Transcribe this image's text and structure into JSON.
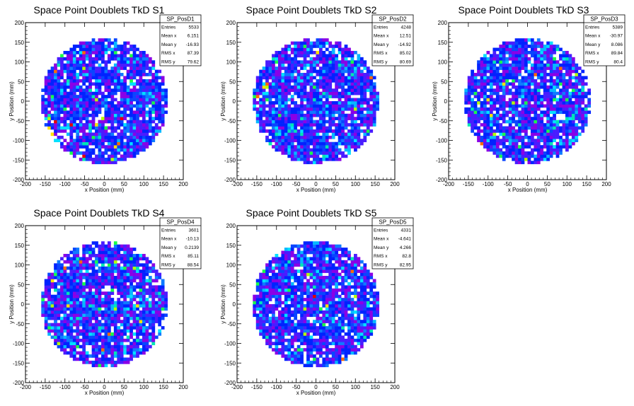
{
  "chart_data": [
    {
      "type": "heatmap",
      "title": "Space Point Doublets TkD S1",
      "xlabel": "x Position (mm)",
      "ylabel": "y Position (mm)",
      "xlim": [
        -200,
        200
      ],
      "ylim": [
        -200,
        200
      ],
      "xticks": [
        -200,
        -150,
        -100,
        -50,
        0,
        50,
        100,
        150,
        200
      ],
      "yticks": [
        -200,
        -150,
        -100,
        -50,
        0,
        50,
        100,
        150,
        200
      ],
      "stats": {
        "name": "SP_PosD1",
        "rows": [
          {
            "label": "Entries",
            "value": "5533"
          },
          {
            "label": "Mean x",
            "value": "6.151"
          },
          {
            "label": "Mean y",
            "value": "-16.93"
          },
          {
            "label": "RMS x",
            "value": "87.39"
          },
          {
            "label": "RMS y",
            "value": "79.62"
          }
        ]
      }
    },
    {
      "type": "heatmap",
      "title": "Space Point Doublets TkD S2",
      "xlabel": "x Position (mm)",
      "ylabel": "y Position (mm)",
      "xlim": [
        -200,
        200
      ],
      "ylim": [
        -200,
        200
      ],
      "xticks": [
        -200,
        -150,
        -100,
        -50,
        0,
        50,
        100,
        150,
        200
      ],
      "yticks": [
        -200,
        -150,
        -100,
        -50,
        0,
        50,
        100,
        150,
        200
      ],
      "stats": {
        "name": "SP_PosD2",
        "rows": [
          {
            "label": "Entries",
            "value": "4248"
          },
          {
            "label": "Mean x",
            "value": "12.51"
          },
          {
            "label": "Mean y",
            "value": "-14.92"
          },
          {
            "label": "RMS x",
            "value": "85.02"
          },
          {
            "label": "RMS y",
            "value": "80.69"
          }
        ]
      }
    },
    {
      "type": "heatmap",
      "title": "Space Point Doublets TkD S3",
      "xlabel": "x Position (mm)",
      "ylabel": "y Position (mm)",
      "xlim": [
        -200,
        200
      ],
      "ylim": [
        -200,
        200
      ],
      "xticks": [
        -200,
        -150,
        -100,
        -50,
        0,
        50,
        100,
        150,
        200
      ],
      "yticks": [
        -200,
        -150,
        -100,
        -50,
        0,
        50,
        100,
        150,
        200
      ],
      "stats": {
        "name": "SP_PosD3",
        "rows": [
          {
            "label": "Entries",
            "value": "5389"
          },
          {
            "label": "Mean x",
            "value": "-30.97"
          },
          {
            "label": "Mean y",
            "value": "8.086"
          },
          {
            "label": "RMS x",
            "value": "89.84"
          },
          {
            "label": "RMS y",
            "value": "80.4"
          }
        ]
      }
    },
    {
      "type": "heatmap",
      "title": "Space Point Doublets TkD S4",
      "xlabel": "x Position (mm)",
      "ylabel": "y Position (mm)",
      "xlim": [
        -200,
        200
      ],
      "ylim": [
        -200,
        200
      ],
      "xticks": [
        -200,
        -150,
        -100,
        -50,
        0,
        50,
        100,
        150,
        200
      ],
      "yticks": [
        -200,
        -150,
        -100,
        -50,
        0,
        50,
        100,
        150,
        200
      ],
      "stats": {
        "name": "SP_PosD4",
        "rows": [
          {
            "label": "Entries",
            "value": "3601"
          },
          {
            "label": "Mean x",
            "value": "-10.13"
          },
          {
            "label": "Mean y",
            "value": "0.2139"
          },
          {
            "label": "RMS x",
            "value": "85.11"
          },
          {
            "label": "RMS y",
            "value": "88.54"
          }
        ]
      }
    },
    {
      "type": "heatmap",
      "title": "Space Point Doublets TkD S5",
      "xlabel": "x Position (mm)",
      "ylabel": "y Position (mm)",
      "xlim": [
        -200,
        200
      ],
      "ylim": [
        -200,
        200
      ],
      "xticks": [
        -200,
        -150,
        -100,
        -50,
        0,
        50,
        100,
        150,
        200
      ],
      "yticks": [
        -200,
        -150,
        -100,
        -50,
        0,
        50,
        100,
        150,
        200
      ],
      "stats": {
        "name": "SP_PosD5",
        "rows": [
          {
            "label": "Entries",
            "value": "4331"
          },
          {
            "label": "Mean x",
            "value": "-4.641"
          },
          {
            "label": "Mean y",
            "value": "4.266"
          },
          {
            "label": "RMS x",
            "value": "82.8"
          },
          {
            "label": "RMS y",
            "value": "82.95"
          }
        ]
      }
    }
  ],
  "colors": {
    "palette": [
      "#8a00e6",
      "#4a1cff",
      "#0022ff",
      "#0a45ff",
      "#0f7aff",
      "#06b8ff",
      "#00e0ff",
      "#00e6b4",
      "#19ff4a",
      "#b5ff00",
      "#ffe000",
      "#ff6a00",
      "#e60000"
    ],
    "frame": "#000000",
    "background": "#ffffff"
  }
}
